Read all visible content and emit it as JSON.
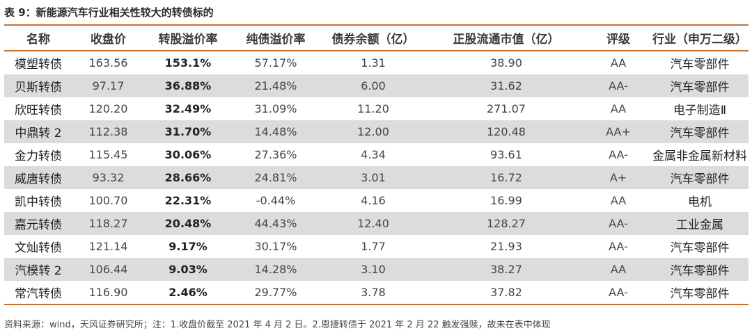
{
  "title": "表 9：新能源汽车行业相关性较大的转债标的",
  "table": {
    "headers": [
      "名称",
      "收盘价",
      "转股溢价率",
      "纯债溢价率",
      "债券余额（亿）",
      "正股流通市值（亿）",
      "评级",
      "行业（申万二级）"
    ],
    "rows": [
      {
        "name": "模塑转债",
        "close": "163.56",
        "conv_premium": "153.1%",
        "bond_premium": "57.17%",
        "balance": "1.31",
        "float_cap": "38.90",
        "rating": "AA",
        "industry": "汽车零部件"
      },
      {
        "name": "贝斯转债",
        "close": "97.17",
        "conv_premium": "36.88%",
        "bond_premium": "21.48%",
        "balance": "6.00",
        "float_cap": "31.62",
        "rating": "AA-",
        "industry": "汽车零部件"
      },
      {
        "name": "欣旺转债",
        "close": "120.20",
        "conv_premium": "32.49%",
        "bond_premium": "31.09%",
        "balance": "11.20",
        "float_cap": "271.07",
        "rating": "AA",
        "industry": "电子制造Ⅱ"
      },
      {
        "name": "中鼎转 2",
        "close": "112.38",
        "conv_premium": "31.70%",
        "bond_premium": "14.48%",
        "balance": "12.00",
        "float_cap": "120.48",
        "rating": "AA+",
        "industry": "汽车零部件"
      },
      {
        "name": "金力转债",
        "close": "115.45",
        "conv_premium": "30.06%",
        "bond_premium": "27.36%",
        "balance": "4.34",
        "float_cap": "93.61",
        "rating": "AA-",
        "industry": "金属非金属新材料"
      },
      {
        "name": "威唐转债",
        "close": "93.32",
        "conv_premium": "28.66%",
        "bond_premium": "24.81%",
        "balance": "3.01",
        "float_cap": "16.72",
        "rating": "A+",
        "industry": "汽车零部件"
      },
      {
        "name": "凯中转债",
        "close": "100.70",
        "conv_premium": "22.31%",
        "bond_premium": "-0.44%",
        "balance": "4.16",
        "float_cap": "16.99",
        "rating": "AA",
        "industry": "电机"
      },
      {
        "name": "嘉元转债",
        "close": "118.27",
        "conv_premium": "20.48%",
        "bond_premium": "44.43%",
        "balance": "12.40",
        "float_cap": "128.27",
        "rating": "AA-",
        "industry": "工业金属"
      },
      {
        "name": "文灿转债",
        "close": "121.14",
        "conv_premium": "9.17%",
        "bond_premium": "30.17%",
        "balance": "1.77",
        "float_cap": "21.93",
        "rating": "AA-",
        "industry": "汽车零部件"
      },
      {
        "name": "汽模转 2",
        "close": "106.44",
        "conv_premium": "9.03%",
        "bond_premium": "14.28%",
        "balance": "3.10",
        "float_cap": "38.27",
        "rating": "AA",
        "industry": "汽车零部件"
      },
      {
        "name": "常汽转债",
        "close": "116.90",
        "conv_premium": "2.46%",
        "bond_premium": "29.77%",
        "balance": "3.78",
        "float_cap": "37.82",
        "rating": "AA-",
        "industry": "汽车零部件"
      }
    ]
  },
  "footnote": "资料来源：wind，天风证券研究所；注：1.收盘价截至 2021 年 4 月 2 日。2.恩捷转债于 2021 年 2 月 22 触发强赎，故未在表中体现",
  "colors": {
    "rule": "#c8702e",
    "shade": "#dcdcdc"
  }
}
